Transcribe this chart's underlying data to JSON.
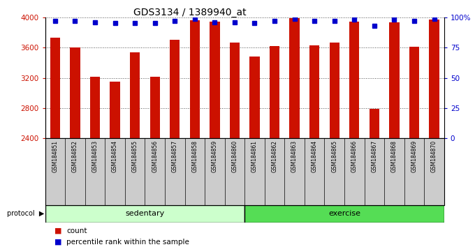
{
  "title": "GDS3134 / 1389940_at",
  "samples": [
    "GSM184851",
    "GSM184852",
    "GSM184853",
    "GSM184854",
    "GSM184855",
    "GSM184856",
    "GSM184857",
    "GSM184858",
    "GSM184859",
    "GSM184860",
    "GSM184861",
    "GSM184862",
    "GSM184863",
    "GSM184864",
    "GSM184865",
    "GSM184866",
    "GSM184867",
    "GSM184868",
    "GSM184869",
    "GSM184870"
  ],
  "counts": [
    3730,
    3600,
    3210,
    3150,
    3540,
    3210,
    3700,
    3960,
    3940,
    3670,
    3480,
    3620,
    3990,
    3630,
    3670,
    3940,
    2790,
    3930,
    3610,
    3970
  ],
  "percentiles": [
    97,
    97,
    96,
    95,
    95,
    95,
    97,
    99,
    96,
    96,
    95,
    97,
    99,
    97,
    97,
    98,
    93,
    98,
    97,
    99
  ],
  "groups": [
    "sedentary",
    "sedentary",
    "sedentary",
    "sedentary",
    "sedentary",
    "sedentary",
    "sedentary",
    "sedentary",
    "sedentary",
    "sedentary",
    "exercise",
    "exercise",
    "exercise",
    "exercise",
    "exercise",
    "exercise",
    "exercise",
    "exercise",
    "exercise",
    "exercise"
  ],
  "bar_color": "#cc1100",
  "dot_color": "#0000cc",
  "sedentary_color": "#ccffcc",
  "exercise_color": "#55dd55",
  "xlabel_bg_color": "#cccccc",
  "ylim_left": [
    2400,
    4000
  ],
  "ylim_right": [
    0,
    100
  ],
  "yticks_left": [
    2400,
    2800,
    3200,
    3600,
    4000
  ],
  "yticks_right": [
    0,
    25,
    50,
    75,
    100
  ],
  "ytick_labels_right": [
    "0",
    "25",
    "50",
    "75",
    "100%"
  ],
  "title_fontsize": 10,
  "bg_color": "#ffffff",
  "grid_color": "#555555"
}
